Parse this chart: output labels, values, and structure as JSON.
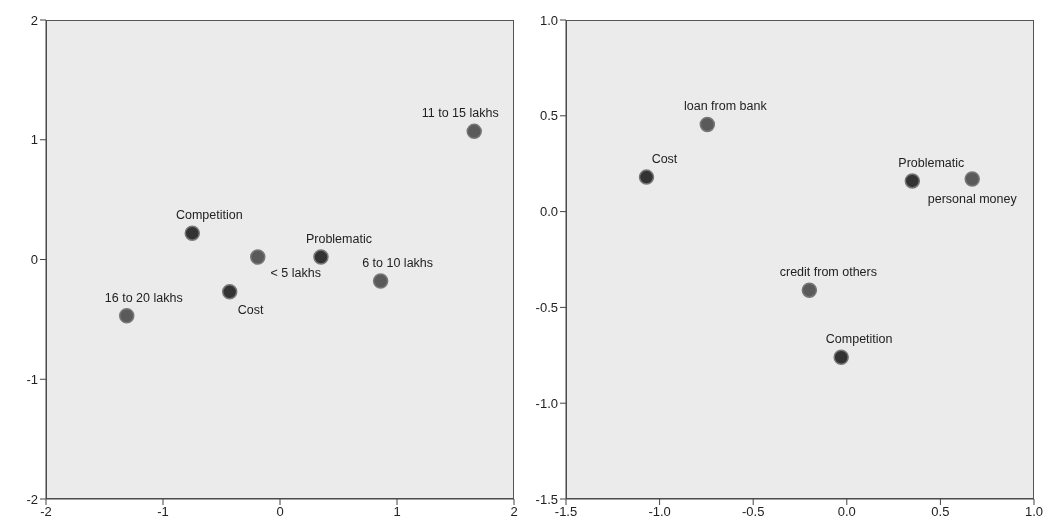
{
  "chart_data": [
    {
      "type": "scatter",
      "xlim": [
        -2,
        2
      ],
      "ylim": [
        -2,
        2
      ],
      "xticks": [
        -2,
        -1,
        0,
        1,
        2
      ],
      "yticks": [
        -2,
        -1,
        0,
        1,
        2
      ],
      "grid": false,
      "marker": "circle",
      "series": [
        {
          "color": "#333333",
          "x": [
            -0.75,
            0.35,
            -0.43
          ],
          "values": [
            0.22,
            0.02,
            -0.27
          ]
        },
        {
          "color": "#5a5a5a",
          "x": [
            1.66,
            -0.19,
            0.86,
            -1.31
          ],
          "values": [
            1.07,
            0.02,
            -0.18,
            -0.47
          ]
        }
      ],
      "annotations": [
        {
          "text": "11 to 15 lakhs",
          "x": 1.66,
          "y": 1.07
        },
        {
          "text": "Competition",
          "x": -0.75,
          "y": 0.22
        },
        {
          "text": "< 5 lakhs",
          "x": -0.19,
          "y": 0.02
        },
        {
          "text": "Problematic",
          "x": 0.35,
          "y": 0.02
        },
        {
          "text": "6 to 10 lakhs",
          "x": 0.86,
          "y": -0.18
        },
        {
          "text": "Cost",
          "x": -0.43,
          "y": -0.27
        },
        {
          "text": "16 to 20 lakhs",
          "x": -1.31,
          "y": -0.47
        }
      ]
    },
    {
      "type": "scatter",
      "xlim": [
        -1.5,
        1.0
      ],
      "ylim": [
        -1.5,
        1.0
      ],
      "xticks": [
        -1.5,
        {
          "value": -1,
          "label": "-1.0"
        },
        -0.5,
        {
          "value": 0,
          "label": "0.0"
        },
        0.5,
        {
          "value": 1,
          "label": "1.0"
        }
      ],
      "yticks": [
        -1.5,
        {
          "value": -1,
          "label": "-1.0"
        },
        -0.5,
        {
          "value": 0,
          "label": "0.0"
        },
        0.5,
        {
          "value": 1,
          "label": "1.0"
        }
      ],
      "grid": false,
      "marker": "circle",
      "series": [
        {
          "color": "#333333",
          "x": [
            -1.07,
            0.35,
            -0.03
          ],
          "values": [
            0.18,
            0.16,
            -0.76
          ]
        },
        {
          "color": "#5a5a5a",
          "x": [
            -0.745,
            0.67,
            -0.2
          ],
          "values": [
            0.455,
            0.17,
            -0.41
          ]
        }
      ],
      "annotations": [
        {
          "text": "loan from bank",
          "x": -0.745,
          "y": 0.455
        },
        {
          "text": "Cost",
          "x": -1.07,
          "y": 0.18
        },
        {
          "text": "Problematic",
          "x": 0.35,
          "y": 0.16
        },
        {
          "text": "personal money",
          "x": 0.67,
          "y": 0.17
        },
        {
          "text": "credit from others",
          "x": -0.2,
          "y": -0.41
        },
        {
          "text": "Competition",
          "x": -0.03,
          "y": -0.76
        }
      ]
    }
  ]
}
